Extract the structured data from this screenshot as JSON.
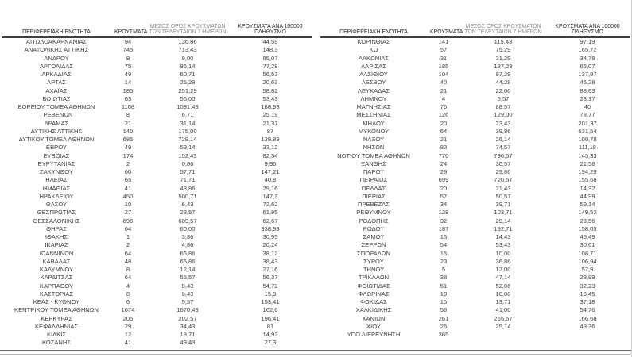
{
  "report": {
    "columns": {
      "region": "ΠΕΡΙΦΕΡΕΙΑΚΗ ΕΝΟΤΗΤΑ",
      "cases": "ΚΡΟΥΣΜΑΤΑ",
      "avg7": "ΜΕΣΟΣ ΟΡΟΣ ΚΡΟΥΣΜΑΤΩΝ ΤΩΝ ΤΕΛΕΥΤΑΙΩΝ 7 ΗΜΕΡΩΝ",
      "per100k": "ΚΡΟΥΣΜΑΤΑ ΑΝΑ 100000 ΠΛΗΘΥΣΜΟ"
    },
    "left_rows": [
      [
        "ΑΙΤΩΛΟΑΚΑΡΝΑΝΙΑΣ",
        "94",
        "136,86",
        "44,59"
      ],
      [
        "ΑΝΑΤΟΛΙΚΗΣ ΑΤΤΙΚΗΣ",
        "745",
        "713,43",
        "148,3"
      ],
      [
        "ΑΝΔΡΟΥ",
        "8",
        "9,00",
        "85,07"
      ],
      [
        "ΑΡΓΟΛΙΔΑΣ",
        "75",
        "86,14",
        "77,28"
      ],
      [
        "ΑΡΚΑΔΙΑΣ",
        "49",
        "60,71",
        "56,53"
      ],
      [
        "ΑΡΤΑΣ",
        "14",
        "25,29",
        "20,63"
      ],
      [
        "ΑΧΑΪΑΣ",
        "185",
        "251,29",
        "58,82"
      ],
      [
        "ΒΟΙΩΤΙΑΣ",
        "63",
        "56,00",
        "53,43"
      ],
      [
        "ΒΟΡΕΙΟΥ ΤΟΜΕΑ ΑΘΗΝΩΝ",
        "1108",
        "1081,43",
        "188,93"
      ],
      [
        "ΓΡΕΒΕΝΩΝ",
        "8",
        "6,71",
        "25,19"
      ],
      [
        "ΔΡΑΜΑΣ",
        "21",
        "31,14",
        "21,37"
      ],
      [
        "ΔΥΤΙΚΗΣ ΑΤΤΙΚΗΣ",
        "140",
        "175,00",
        "87"
      ],
      [
        "ΔΥΤΙΚΟΥ ΤΟΜΕΑ ΑΘΗΝΩΝ",
        "685",
        "729,14",
        "139,89"
      ],
      [
        "ΕΒΡΟΥ",
        "49",
        "59,14",
        "33,12"
      ],
      [
        "ΕΥΒΟΙΑΣ",
        "174",
        "152,43",
        "82,54"
      ],
      [
        "ΕΥΡΥΤΑΝΙΑΣ",
        "2",
        "0,86",
        "9,96"
      ],
      [
        "ΖΑΚΥΝΘΟΥ",
        "60",
        "57,71",
        "147,21"
      ],
      [
        "ΗΛΕΙΑΣ",
        "65",
        "71,71",
        "40,8"
      ],
      [
        "ΗΜΑΘΙΑΣ",
        "41",
        "48,86",
        "29,16"
      ],
      [
        "ΗΡΑΚΛΕΙΟΥ",
        "450",
        "500,71",
        "147,3"
      ],
      [
        "ΘΑΣΟΥ",
        "10",
        "6,43",
        "72,62"
      ],
      [
        "ΘΕΣΠΡΩΤΙΑΣ",
        "27",
        "28,57",
        "61,95"
      ],
      [
        "ΘΕΣΣΑΛΟΝΙΚΗΣ",
        "696",
        "689,57",
        "62,67"
      ],
      [
        "ΘΗΡΑΣ",
        "64",
        "60,00",
        "338,93"
      ],
      [
        "ΙΘΑΚΗΣ",
        "1",
        "3,86",
        "30,95"
      ],
      [
        "ΙΚΑΡΙΑΣ",
        "2",
        "4,86",
        "20,24"
      ],
      [
        "ΙΩΑΝΝΙΝΩΝ",
        "64",
        "66,86",
        "38,12"
      ],
      [
        "ΚΑΒΑΛΑΣ",
        "48",
        "65,86",
        "38,43"
      ],
      [
        "ΚΑΛΥΜΝΟΥ",
        "8",
        "12,14",
        "27,16"
      ],
      [
        "ΚΑΡΔΙΤΣΑΣ",
        "64",
        "55,57",
        "56,37"
      ],
      [
        "ΚΑΡΠΑΘΟΥ",
        "4",
        "8,43",
        "54,72"
      ],
      [
        "ΚΑΣΤΟΡΙΑΣ",
        "8",
        "8,43",
        "15,9"
      ],
      [
        "ΚΕΑΣ - ΚΥΘΝΟΥ",
        "6",
        "5,57",
        "153,41"
      ],
      [
        "ΚΕΝΤΡΙΚΟΥ ΤΟΜΕΑ ΑΘΗΝΩΝ",
        "1674",
        "1670,43",
        "162,6"
      ],
      [
        "ΚΕΡΚΥΡΑΣ",
        "205",
        "202,57",
        "196,41"
      ],
      [
        "ΚΕΦΑΛΛΗΝΙΑΣ",
        "29",
        "34,43",
        "81"
      ],
      [
        "ΚΙΛΚΙΣ",
        "12",
        "18,71",
        "14,92"
      ],
      [
        "ΚΟΖΑΝΗΣ",
        "41",
        "49,43",
        "27,3"
      ]
    ],
    "right_rows": [
      [
        "ΚΟΡΙΝΘΙΑΣ",
        "141",
        "115,43",
        "97,19"
      ],
      [
        "ΚΩ",
        "57",
        "75,29",
        "165,72"
      ],
      [
        "ΛΑΚΩΝΙΑΣ",
        "31",
        "31,29",
        "34,78"
      ],
      [
        "ΛΑΡΙΣΑΣ",
        "185",
        "187,29",
        "65,07"
      ],
      [
        "ΛΑΣΙΘΙΟΥ",
        "104",
        "97,29",
        "137,97"
      ],
      [
        "ΛΕΣΒΟΥ",
        "40",
        "44,29",
        "46,28"
      ],
      [
        "ΛΕΥΚΑΔΑΣ",
        "21",
        "22,00",
        "88,63"
      ],
      [
        "ΛΗΜΝΟΥ",
        "4",
        "5,57",
        "23,17"
      ],
      [
        "ΜΑΓΝΗΣΙΑΣ",
        "76",
        "88,57",
        "40"
      ],
      [
        "ΜΕΣΣΗΝΙΑΣ",
        "126",
        "129,00",
        "78,77"
      ],
      [
        "ΜΗΛΟΥ",
        "20",
        "23,43",
        "201,37"
      ],
      [
        "ΜΥΚΟΝΟΥ",
        "64",
        "39,86",
        "631,54"
      ],
      [
        "ΝΑΞΟΥ",
        "21",
        "26,14",
        "100,78"
      ],
      [
        "ΝΗΣΩΝ",
        "83",
        "74,57",
        "111,18"
      ],
      [
        "ΝΟΤΙΟΥ ΤΟΜΕΑ ΑΘΗΝΩΝ",
        "770",
        "796,57",
        "145,33"
      ],
      [
        "ΞΑΝΘΗΣ",
        "24",
        "30,57",
        "21,58"
      ],
      [
        "ΠΑΡΟΥ",
        "29",
        "29,86",
        "194,29"
      ],
      [
        "ΠΕΙΡΑΙΩΣ",
        "699",
        "720,57",
        "155,68"
      ],
      [
        "ΠΕΛΛΑΣ",
        "20",
        "21,43",
        "14,32"
      ],
      [
        "ΠΙΕΡΙΑΣ",
        "57",
        "50,57",
        "44,99"
      ],
      [
        "ΠΡΕΒΕΖΑΣ",
        "34",
        "39,71",
        "59,14"
      ],
      [
        "ΡΕΘΥΜΝΟΥ",
        "128",
        "103,71",
        "149,52"
      ],
      [
        "ΡΟΔΟΠΗΣ",
        "32",
        "29,14",
        "28,56"
      ],
      [
        "ΡΟΔΟΥ",
        "187",
        "192,71",
        "158,05"
      ],
      [
        "ΣΑΜΟΥ",
        "15",
        "14,43",
        "45,49"
      ],
      [
        "ΣΕΡΡΩΝ",
        "54",
        "53,43",
        "30,61"
      ],
      [
        "ΣΠΟΡΑΔΩΝ",
        "15",
        "10,00",
        "108,71"
      ],
      [
        "ΣΥΡΟΥ",
        "23",
        "36,86",
        "106,94"
      ],
      [
        "ΤΗΝΟΥ",
        "5",
        "12,00",
        "57,9"
      ],
      [
        "ΤΡΙΚΑΛΩΝ",
        "38",
        "47,14",
        "28,99"
      ],
      [
        "ΦΘΙΩΤΙΔΑΣ",
        "51",
        "52,86",
        "32,23"
      ],
      [
        "ΦΛΩΡΙΝΑΣ",
        "10",
        "10,00",
        "19,45"
      ],
      [
        "ΦΩΚΙΔΑΣ",
        "15",
        "13,71",
        "37,18"
      ],
      [
        "ΧΑΛΚΙΔΙΚΗΣ",
        "58",
        "41,00",
        "54,76"
      ],
      [
        "ΧΑΝΙΩΝ",
        "261",
        "265,57",
        "166,68"
      ],
      [
        "ΧΙΟΥ",
        "26",
        "25,14",
        "49,36"
      ],
      [
        "ΥΠΟ ΔΙΕΡΕΥΝΗΣΗ",
        "365",
        "",
        ""
      ]
    ]
  }
}
